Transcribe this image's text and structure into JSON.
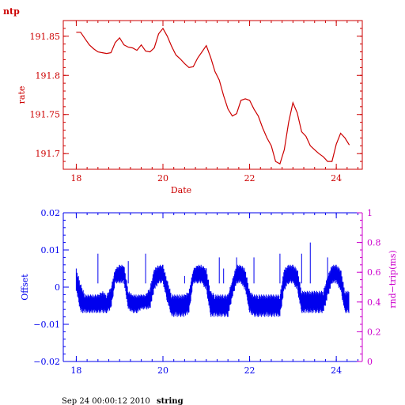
{
  "page": {
    "corner_title": "ntp",
    "footer_prefix": "Sep 24 00:00:12 2010",
    "footer_host": "string"
  },
  "chart_data": [
    {
      "type": "line",
      "title": "",
      "xlabel": "Date",
      "ylabel": "rate",
      "xlim": [
        17.7,
        24.6
      ],
      "ylim": [
        191.68,
        191.87
      ],
      "xticks": [
        18,
        20,
        22,
        24
      ],
      "yticks": [
        191.7,
        191.75,
        191.8,
        191.85
      ],
      "tick_labels_x": [
        "18",
        "20",
        "22",
        "24"
      ],
      "tick_labels_y": [
        "191.7",
        "191.75",
        "191.8",
        "191.85"
      ],
      "color": "#cc0000",
      "grid": false,
      "series": [
        {
          "x": [
            18.0,
            18.1,
            18.2,
            18.3,
            18.4,
            18.5,
            18.6,
            18.7,
            18.8,
            18.9,
            19.0,
            19.1,
            19.2,
            19.3,
            19.4,
            19.5,
            19.6,
            19.7,
            19.8,
            19.9,
            20.0,
            20.1,
            20.2,
            20.3,
            20.4,
            20.5,
            20.6,
            20.7,
            20.8,
            20.9,
            21.0,
            21.1,
            21.2,
            21.3,
            21.4,
            21.5,
            21.6,
            21.7,
            21.8,
            21.9,
            22.0,
            22.1,
            22.2,
            22.3,
            22.4,
            22.5,
            22.6,
            22.7,
            22.8,
            22.9,
            23.0,
            23.1,
            23.2,
            23.3,
            23.4,
            23.5,
            23.6,
            23.7,
            23.8,
            23.9,
            24.0,
            24.1,
            24.2,
            24.3
          ],
          "y": [
            191.855,
            191.855,
            191.847,
            191.839,
            191.834,
            191.83,
            191.829,
            191.828,
            191.829,
            191.842,
            191.848,
            191.839,
            191.836,
            191.835,
            191.832,
            191.839,
            191.831,
            191.83,
            191.835,
            191.853,
            191.86,
            191.85,
            191.837,
            191.826,
            191.821,
            191.815,
            191.81,
            191.811,
            191.822,
            191.83,
            191.838,
            191.823,
            191.805,
            191.794,
            191.774,
            191.757,
            191.748,
            191.751,
            191.768,
            191.77,
            191.768,
            191.757,
            191.748,
            191.733,
            191.72,
            191.71,
            191.69,
            191.687,
            191.705,
            191.74,
            191.765,
            191.752,
            191.728,
            191.722,
            191.71,
            191.705,
            191.7,
            191.696,
            191.69,
            191.69,
            191.712,
            191.726,
            191.72,
            191.711
          ]
        }
      ]
    },
    {
      "type": "line",
      "title": "",
      "xlabel": "",
      "ylabel": "Offset",
      "y2label": "rnd−trip(ms)",
      "xlim": [
        17.7,
        24.6
      ],
      "ylim": [
        -0.02,
        0.02
      ],
      "y2lim": [
        0,
        1
      ],
      "xticks": [
        18,
        20,
        22,
        24
      ],
      "yticks": [
        -0.02,
        -0.01,
        0,
        0.01,
        0.02
      ],
      "y2ticks": [
        0,
        0.2,
        0.4,
        0.6,
        0.8,
        1
      ],
      "tick_labels_x": [
        "18",
        "20",
        "22",
        "24"
      ],
      "tick_labels_y": [
        "−0.02",
        "−0.01",
        "0",
        "0.01",
        "0.02"
      ],
      "tick_labels_y2": [
        "0",
        "0.2",
        "0.4",
        "0.6",
        "0.8",
        "1"
      ],
      "color": "#0000ee",
      "axis2_color": "#cc00cc",
      "grid": false,
      "series": [
        {
          "x": [
            18.0,
            18.1,
            18.2,
            18.3,
            18.4,
            18.5,
            18.6,
            18.7,
            18.8,
            18.9,
            19.0,
            19.1,
            19.2,
            19.3,
            19.4,
            19.5,
            19.6,
            19.7,
            19.8,
            19.9,
            20.0,
            20.1,
            20.2,
            20.3,
            20.4,
            20.5,
            20.6,
            20.7,
            20.8,
            20.9,
            21.0,
            21.1,
            21.2,
            21.3,
            21.4,
            21.5,
            21.6,
            21.7,
            21.8,
            21.9,
            22.0,
            22.1,
            22.2,
            22.3,
            22.4,
            22.5,
            22.6,
            22.7,
            22.8,
            22.9,
            23.0,
            23.1,
            23.2,
            23.3,
            23.4,
            23.5,
            23.6,
            23.7,
            23.8,
            23.9,
            24.0,
            24.1,
            24.2,
            24.3
          ],
          "y_low": [
            -0.001,
            -0.007,
            -0.007,
            -0.007,
            -0.007,
            -0.007,
            -0.007,
            -0.007,
            -0.006,
            0.001,
            0.001,
            0.001,
            -0.006,
            -0.007,
            -0.007,
            -0.006,
            -0.006,
            -0.006,
            -0.001,
            0.001,
            0.001,
            -0.004,
            -0.008,
            -0.008,
            -0.008,
            -0.008,
            -0.007,
            0.001,
            0.001,
            0.001,
            -0.001,
            -0.008,
            -0.008,
            -0.008,
            -0.008,
            -0.008,
            -0.003,
            0.001,
            0.001,
            -0.001,
            -0.007,
            -0.008,
            -0.008,
            -0.008,
            -0.008,
            -0.008,
            -0.008,
            -0.008,
            -0.001,
            0.001,
            0.001,
            -0.001,
            -0.007,
            -0.007,
            -0.007,
            -0.007,
            -0.007,
            -0.007,
            -0.003,
            0.001,
            0.001,
            -0.001,
            -0.007,
            -0.007
          ],
          "y_high": [
            0.005,
            0.001,
            -0.002,
            -0.002,
            -0.002,
            -0.002,
            -0.001,
            -0.002,
            0.0,
            0.005,
            0.006,
            0.006,
            -0.001,
            -0.002,
            -0.002,
            -0.002,
            -0.002,
            0.0,
            0.005,
            0.006,
            0.006,
            0.002,
            -0.002,
            -0.002,
            -0.002,
            -0.002,
            -0.001,
            0.005,
            0.006,
            0.006,
            0.005,
            -0.001,
            -0.002,
            -0.002,
            -0.002,
            -0.002,
            0.002,
            0.006,
            0.006,
            0.005,
            -0.001,
            -0.002,
            -0.002,
            -0.002,
            -0.002,
            -0.002,
            -0.002,
            -0.002,
            0.005,
            0.006,
            0.006,
            0.005,
            -0.001,
            -0.001,
            -0.001,
            -0.001,
            -0.001,
            -0.001,
            0.003,
            0.006,
            0.006,
            0.005,
            -0.001,
            -0.001
          ],
          "spikes_x": [
            18.5,
            19.2,
            19.6,
            20.5,
            21.3,
            21.4,
            21.7,
            22.1,
            22.7,
            22.9,
            23.2,
            23.4,
            23.8
          ],
          "spikes_y": [
            0.009,
            0.007,
            0.009,
            0.003,
            0.008,
            0.005,
            0.008,
            0.008,
            0.009,
            0.006,
            0.009,
            0.012,
            0.008
          ]
        }
      ]
    }
  ]
}
